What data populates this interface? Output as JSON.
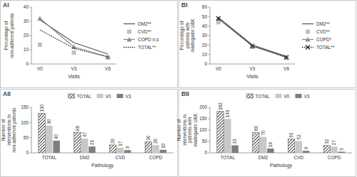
{
  "chart_data": [
    {
      "type": "line",
      "title": "AI",
      "x_label": "Visits",
      "y_label": "Percentage of non-adherent patients",
      "categories": [
        "V0",
        "V3",
        "V6"
      ],
      "ylim": [
        0,
        40
      ],
      "yticks": [
        0,
        10,
        20,
        30,
        40
      ],
      "grid": false,
      "legend": "right",
      "series": [
        {
          "name": "DM2**",
          "color": "#595959",
          "line_style": "solid",
          "marker": "none",
          "values": [
            31,
            15,
            7
          ]
        },
        {
          "name": "CVD**",
          "color": "#bfbfbf",
          "line_style": "none",
          "marker": "square",
          "values": [
            13.5,
            8,
            4.5
          ]
        },
        {
          "name": "COPD n.s",
          "color": "#8c8c8c",
          "line_style": "solid",
          "marker": "triangle",
          "values": [
            32,
            12,
            5
          ]
        },
        {
          "name": "TOTAL**",
          "color": "#262626",
          "line_style": "dotted",
          "marker": "none",
          "values": [
            24,
            11,
            5
          ]
        }
      ]
    },
    {
      "type": "line",
      "title": "BI",
      "x_label": "Visits",
      "y_label": "Percentage of patients with inadequate U&K",
      "categories": [
        "V0",
        "V3",
        "V6"
      ],
      "ylim": [
        0,
        60
      ],
      "yticks": [
        0,
        10,
        20,
        30,
        40,
        50,
        60
      ],
      "grid": false,
      "legend": "right",
      "series": [
        {
          "name": "DM2**",
          "color": "#595959",
          "line_style": "solid",
          "marker": "none",
          "values": [
            49,
            20,
            8
          ]
        },
        {
          "name": "CVD**",
          "color": "#bfbfbf",
          "line_style": "none",
          "marker": "square",
          "values": [
            44,
            18,
            7
          ]
        },
        {
          "name": "COPD*",
          "color": "#8c8c8c",
          "line_style": "solid",
          "marker": "triangle",
          "values": [
            48,
            19,
            7
          ]
        },
        {
          "name": "TOTAL**",
          "color": "#262626",
          "line_style": "dotted",
          "marker": "x",
          "values": [
            48,
            19,
            7
          ]
        }
      ]
    },
    {
      "type": "bar",
      "title": "AII",
      "x_label": "Pathology",
      "y_label": "Number of interventions in non-adherent patients",
      "categories": [
        "TOTAL",
        "DM2",
        "CVD",
        "COPD"
      ],
      "ylim": [
        0,
        150
      ],
      "yticks": [
        0,
        50,
        100,
        150
      ],
      "grid": false,
      "legend": "top",
      "data_labels": true,
      "series": [
        {
          "name": "TOTAL",
          "color": "#404040",
          "values": [
            130,
            68,
            26,
            36
          ]
        },
        {
          "name": "V0",
          "color": "#c8c8c8",
          "values": [
            90,
            47,
            17,
            26
          ]
        },
        {
          "name": "V3",
          "color": "#7f7f7f",
          "values": [
            40,
            21,
            9,
            10
          ]
        }
      ]
    },
    {
      "type": "bar",
      "title": "BII",
      "x_label": "Pathology",
      "y_label": "Number of interventions in patients with inadequate U&K",
      "categories": [
        "TOTAL",
        "DM2",
        "CVD",
        "COPD"
      ],
      "ylim": [
        0,
        200
      ],
      "yticks": [
        0,
        50,
        100,
        150,
        200
      ],
      "grid": false,
      "legend": "top",
      "data_labels": true,
      "series": [
        {
          "name": "TOTAL",
          "color": "#404040",
          "values": [
            182,
            89,
            61,
            32
          ]
        },
        {
          "name": "V0",
          "color": "#c8c8c8",
          "values": [
            149,
            70,
            52,
            27
          ]
        },
        {
          "name": "V3",
          "color": "#7f7f7f",
          "values": [
            33,
            19,
            9,
            5
          ]
        }
      ]
    }
  ]
}
